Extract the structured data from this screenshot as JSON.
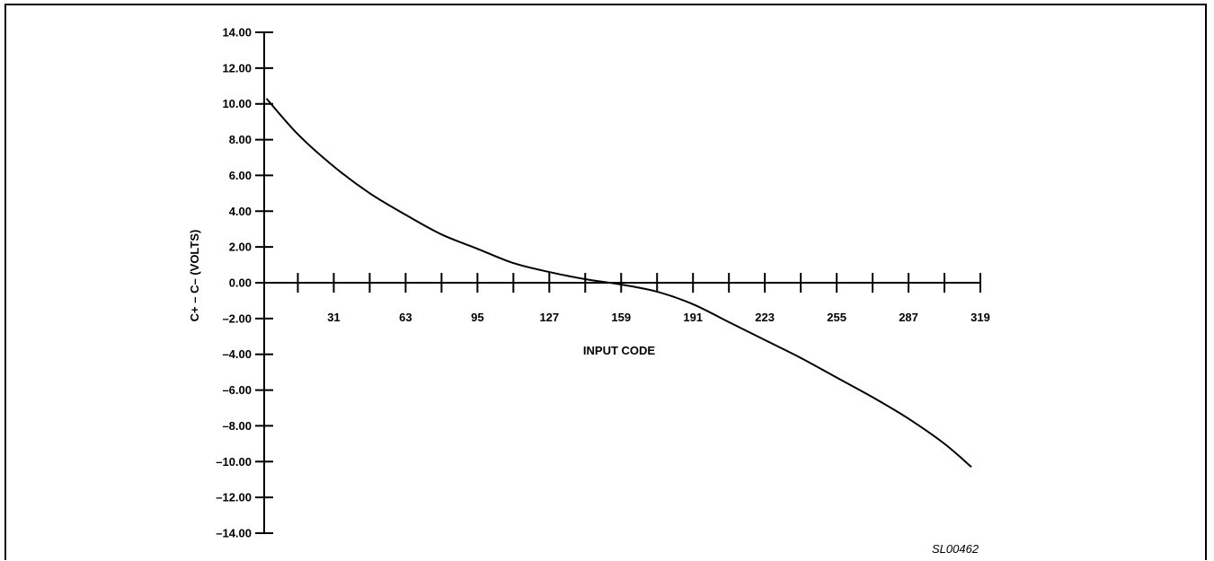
{
  "figure_id": "SL00462",
  "colors": {
    "line": "#000000",
    "background": "#ffffff"
  },
  "chart_data": {
    "type": "line",
    "title": "",
    "xlabel": "INPUT CODE",
    "ylabel": "C+ – C– (VOLTS)",
    "xlim": [
      0,
      319
    ],
    "ylim": [
      -14,
      14
    ],
    "grid": false,
    "legend": "none",
    "x_ticks_major": [
      0,
      15,
      31,
      47,
      63,
      79,
      95,
      111,
      127,
      143,
      159,
      175,
      191,
      207,
      223,
      239,
      255,
      271,
      287,
      303,
      319
    ],
    "x_tick_labels": [
      {
        "value": 31,
        "label": "31"
      },
      {
        "value": 63,
        "label": "63"
      },
      {
        "value": 95,
        "label": "95"
      },
      {
        "value": 127,
        "label": "127"
      },
      {
        "value": 159,
        "label": "159"
      },
      {
        "value": 191,
        "label": "191"
      },
      {
        "value": 223,
        "label": "223"
      },
      {
        "value": 255,
        "label": "255"
      },
      {
        "value": 287,
        "label": "287"
      },
      {
        "value": 319,
        "label": "319"
      }
    ],
    "y_ticks": [
      {
        "value": 14,
        "label": "14.00"
      },
      {
        "value": 12,
        "label": "12.00"
      },
      {
        "value": 10,
        "label": "10.00"
      },
      {
        "value": 8,
        "label": "8.00"
      },
      {
        "value": 6,
        "label": "6.00"
      },
      {
        "value": 4,
        "label": "4.00"
      },
      {
        "value": 2,
        "label": "2.00"
      },
      {
        "value": 0,
        "label": "0.00"
      },
      {
        "value": -2,
        "label": "–2.00"
      },
      {
        "value": -4,
        "label": "–4.00"
      },
      {
        "value": -6,
        "label": "–6.00"
      },
      {
        "value": -8,
        "label": "–8.00"
      },
      {
        "value": -10,
        "label": "–10.00"
      },
      {
        "value": -12,
        "label": "–12.00"
      },
      {
        "value": -14,
        "label": "–14.00"
      }
    ],
    "series": [
      {
        "x": [
          1,
          15,
          31,
          47,
          63,
          79,
          95,
          111,
          127,
          143,
          159,
          175,
          191,
          207,
          223,
          239,
          255,
          271,
          287,
          303,
          315
        ],
        "y": [
          10.3,
          8.3,
          6.5,
          5.0,
          3.8,
          2.7,
          1.9,
          1.1,
          0.6,
          0.2,
          -0.1,
          -0.5,
          -1.2,
          -2.2,
          -3.2,
          -4.2,
          -5.3,
          -6.4,
          -7.6,
          -9.0,
          -10.3
        ]
      }
    ]
  }
}
